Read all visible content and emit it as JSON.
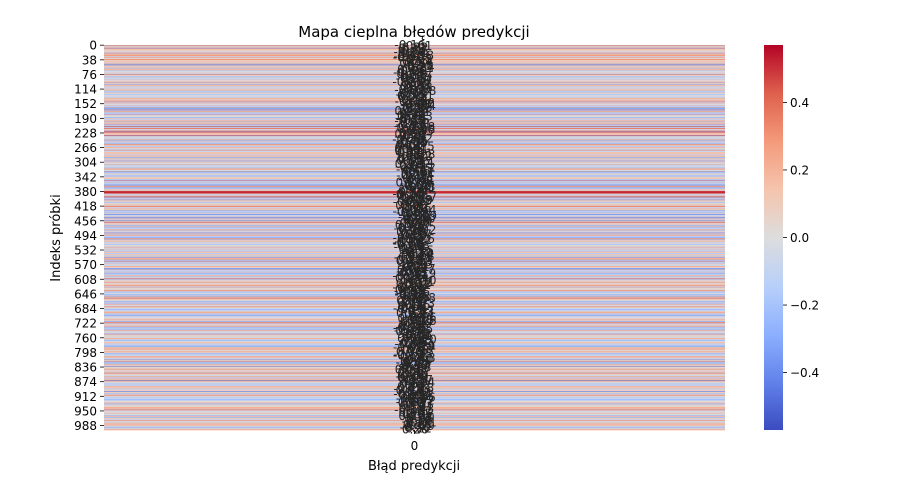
{
  "chart_data": {
    "type": "heatmap",
    "title": "Mapa cieplna błędów predykcji",
    "xlabel": "Błąd predykcji",
    "ylabel": "Indeks próbki",
    "x_tick_labels": [
      "0"
    ],
    "y_tick_labels": [
      "0",
      "38",
      "76",
      "114",
      "152",
      "190",
      "228",
      "266",
      "304",
      "342",
      "380",
      "418",
      "456",
      "494",
      "532",
      "570",
      "608",
      "646",
      "684",
      "722",
      "760",
      "798",
      "836",
      "874",
      "912",
      "950",
      "988"
    ],
    "n_rows": 1000,
    "colormap": "coolwarm",
    "vmin": -0.57,
    "vmax": 0.57,
    "colorbar_ticks": [
      0.4,
      0.2,
      0.0,
      -0.2,
      -0.4
    ],
    "colorbar_tick_labels": [
      "0.4",
      "0.2",
      "0.0",
      "−0.2",
      "−0.4"
    ],
    "annotations": "per-cell error values (2 decimals), heavily overlapping",
    "row_values_seed": 20240517
  }
}
